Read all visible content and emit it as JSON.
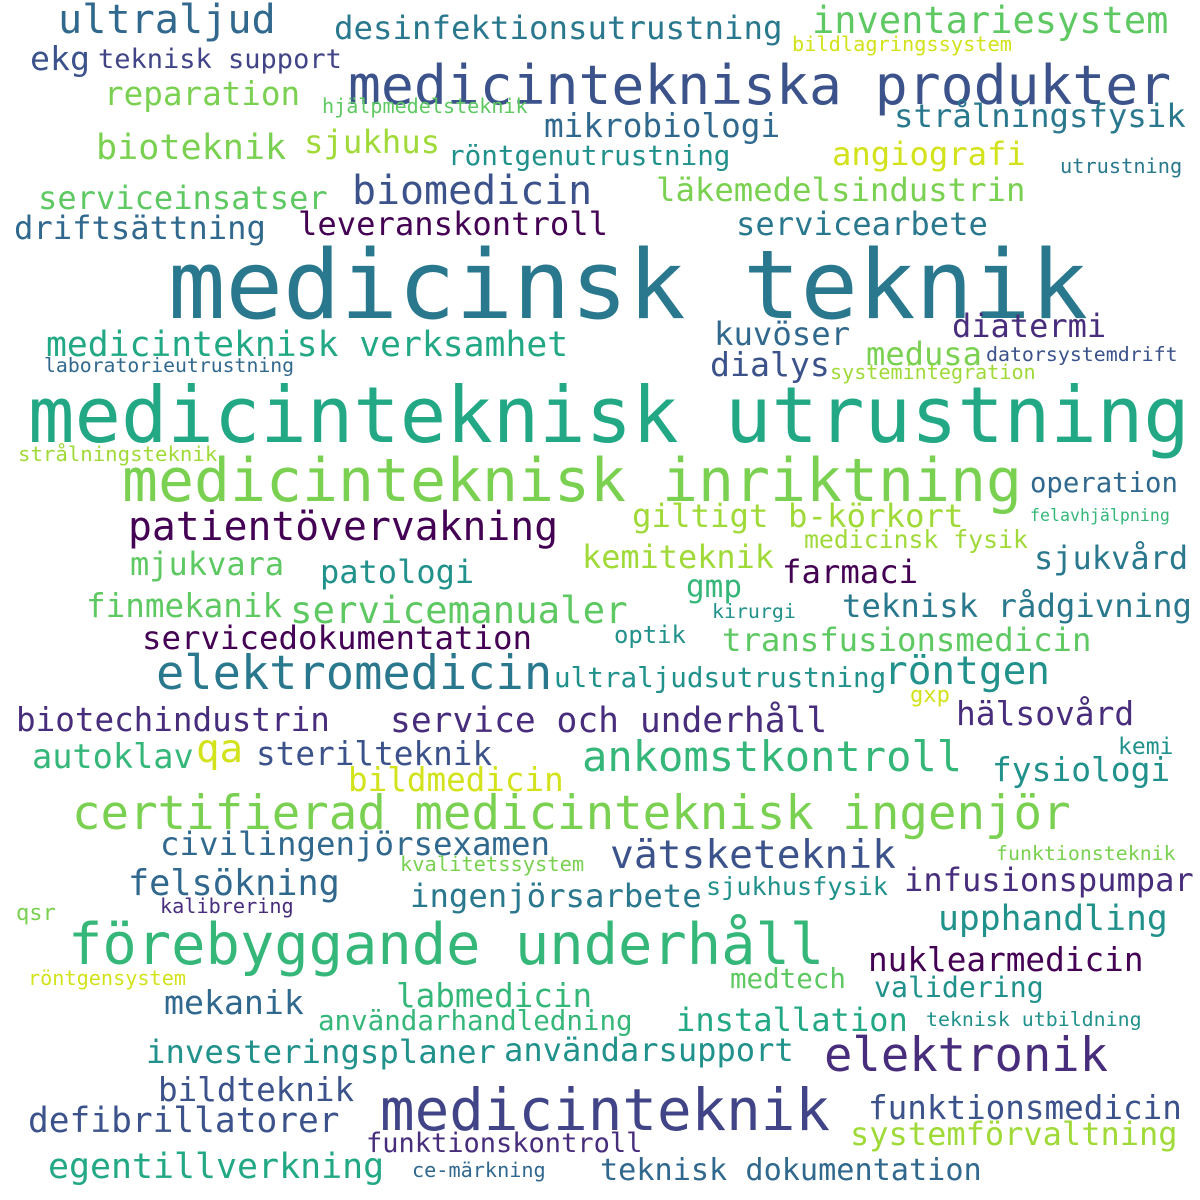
{
  "words": [
    {
      "text": "medicinsk teknik",
      "color": "#2a788e"
    },
    {
      "text": "medicinteknisk utrustning",
      "color": "#22a884"
    },
    {
      "text": "medicinteknisk inriktning",
      "color": "#7ad151"
    },
    {
      "text": "medicinteknik",
      "color": "#414487"
    },
    {
      "text": "medicintekniska produkter",
      "color": "#3b528b"
    },
    {
      "text": "förebyggande underhåll",
      "color": "#35b779"
    },
    {
      "text": "certifierad medicinteknisk ingenjör",
      "color": "#7ad151"
    },
    {
      "text": "elektromedicin",
      "color": "#2a788e"
    },
    {
      "text": "elektronik",
      "color": "#472d7b"
    },
    {
      "text": "ankomstkontroll",
      "color": "#35b779"
    },
    {
      "text": "patientövervakning",
      "color": "#440154"
    },
    {
      "text": "ultraljud",
      "color": "#31688e"
    },
    {
      "text": "inventariesystem",
      "color": "#5ec962"
    },
    {
      "text": "desinfektionsutrustning",
      "color": "#2a788e"
    },
    {
      "text": "bildlagringssystem",
      "color": "#d2e21b"
    },
    {
      "text": "ekg",
      "color": "#3b528b"
    },
    {
      "text": "teknisk support",
      "color": "#414487"
    },
    {
      "text": "reparation",
      "color": "#7ad151"
    },
    {
      "text": "hjälpmedelsteknik",
      "color": "#5ec962"
    },
    {
      "text": "strålningsfysik",
      "color": "#2a788e"
    },
    {
      "text": "mikrobiologi",
      "color": "#31688e"
    },
    {
      "text": "bioteknik",
      "color": "#7ad151"
    },
    {
      "text": "sjukhus",
      "color": "#a0da39"
    },
    {
      "text": "röntgenutrustning",
      "color": "#21918c"
    },
    {
      "text": "angiografi",
      "color": "#d2e21b"
    },
    {
      "text": "utrustning",
      "color": "#2a788e"
    },
    {
      "text": "serviceinsatser",
      "color": "#5ec962"
    },
    {
      "text": "biomedicin",
      "color": "#3b528b"
    },
    {
      "text": "läkemedelsindustrin",
      "color": "#7ad151"
    },
    {
      "text": "driftsättning",
      "color": "#31688e"
    },
    {
      "text": "leveranskontroll",
      "color": "#440154"
    },
    {
      "text": "servicearbete",
      "color": "#2a788e"
    },
    {
      "text": "medicinteknisk verksamhet",
      "color": "#22a884"
    },
    {
      "text": "kuvöser",
      "color": "#31688e"
    },
    {
      "text": "diatermi",
      "color": "#472d7b"
    },
    {
      "text": "medusa",
      "color": "#7ad151"
    },
    {
      "text": "dialys",
      "color": "#3b528b"
    },
    {
      "text": "datorsystemdrift",
      "color": "#3b528b"
    },
    {
      "text": "laboratorieutrustning",
      "color": "#31688e"
    },
    {
      "text": "systemintegration",
      "color": "#a0da39"
    },
    {
      "text": "strålningsteknik",
      "color": "#a0da39"
    },
    {
      "text": "operation",
      "color": "#31688e"
    },
    {
      "text": "felavhjälpning",
      "color": "#35b779"
    },
    {
      "text": "giltigt b-körkort",
      "color": "#a0da39"
    },
    {
      "text": "medicinsk fysik",
      "color": "#a0da39"
    },
    {
      "text": "kemiteknik",
      "color": "#a0da39"
    },
    {
      "text": "sjukvård",
      "color": "#2a788e"
    },
    {
      "text": "mjukvara",
      "color": "#5ec962"
    },
    {
      "text": "patologi",
      "color": "#21918c"
    },
    {
      "text": "farmaci",
      "color": "#440154"
    },
    {
      "text": "gmp",
      "color": "#35b779"
    },
    {
      "text": "finmekanik",
      "color": "#5ec962"
    },
    {
      "text": "servicemanualer",
      "color": "#5ec962"
    },
    {
      "text": "kirurgi",
      "color": "#21918c"
    },
    {
      "text": "teknisk rådgivning",
      "color": "#2a788e"
    },
    {
      "text": "servicedokumentation",
      "color": "#440154"
    },
    {
      "text": "optik",
      "color": "#21918c"
    },
    {
      "text": "transfusionsmedicin",
      "color": "#5ec962"
    },
    {
      "text": "röntgen",
      "color": "#21918c"
    },
    {
      "text": "ultraljudsutrustning",
      "color": "#21918c"
    },
    {
      "text": "gxp",
      "color": "#d2e21b"
    },
    {
      "text": "biotechindustrin",
      "color": "#472d7b"
    },
    {
      "text": "service och underhåll",
      "color": "#472d7b"
    },
    {
      "text": "hälsovård",
      "color": "#472d7b"
    },
    {
      "text": "autoklav",
      "color": "#35b779"
    },
    {
      "text": "qa",
      "color": "#d2e21b"
    },
    {
      "text": "sterilteknik",
      "color": "#3b528b"
    },
    {
      "text": "kemi",
      "color": "#21918c"
    },
    {
      "text": "fysiologi",
      "color": "#21918c"
    },
    {
      "text": "bildmedicin",
      "color": "#d2e21b"
    },
    {
      "text": "civilingenjörsexamen",
      "color": "#31688e"
    },
    {
      "text": "vätsketeknik",
      "color": "#3b528b"
    },
    {
      "text": "kvalitetssystem",
      "color": "#7ad151"
    },
    {
      "text": "funktionsteknik",
      "color": "#7ad151"
    },
    {
      "text": "felsökning",
      "color": "#31688e"
    },
    {
      "text": "infusionspumpar",
      "color": "#472d7b"
    },
    {
      "text": "ingenjörsarbete",
      "color": "#2a788e"
    },
    {
      "text": "sjukhusfysik",
      "color": "#21918c"
    },
    {
      "text": "qsr",
      "color": "#7ad151"
    },
    {
      "text": "kalibrering",
      "color": "#472d7b"
    },
    {
      "text": "upphandling",
      "color": "#21918c"
    },
    {
      "text": "nuklearmedicin",
      "color": "#440154"
    },
    {
      "text": "röntgensystem",
      "color": "#d2e21b"
    },
    {
      "text": "medtech",
      "color": "#5ec962"
    },
    {
      "text": "mekanik",
      "color": "#31688e"
    },
    {
      "text": "labmedicin",
      "color": "#35b779"
    },
    {
      "text": "validering",
      "color": "#21918c"
    },
    {
      "text": "användarhandledning",
      "color": "#35b779"
    },
    {
      "text": "installation",
      "color": "#22a884"
    },
    {
      "text": "teknisk utbildning",
      "color": "#21918c"
    },
    {
      "text": "investeringsplaner",
      "color": "#21918c"
    },
    {
      "text": "användarsupport",
      "color": "#21918c"
    },
    {
      "text": "bildteknik",
      "color": "#3b528b"
    },
    {
      "text": "defibrillatorer",
      "color": "#3b528b"
    },
    {
      "text": "funktionsmedicin",
      "color": "#3b528b"
    },
    {
      "text": "systemförvaltning",
      "color": "#a0da39"
    },
    {
      "text": "funktionskontroll",
      "color": "#472d7b"
    },
    {
      "text": "egentillverkning",
      "color": "#22a884"
    },
    {
      "text": "ce-märkning",
      "color": "#31688e"
    },
    {
      "text": "teknisk dokumentation",
      "color": "#31688e"
    }
  ]
}
